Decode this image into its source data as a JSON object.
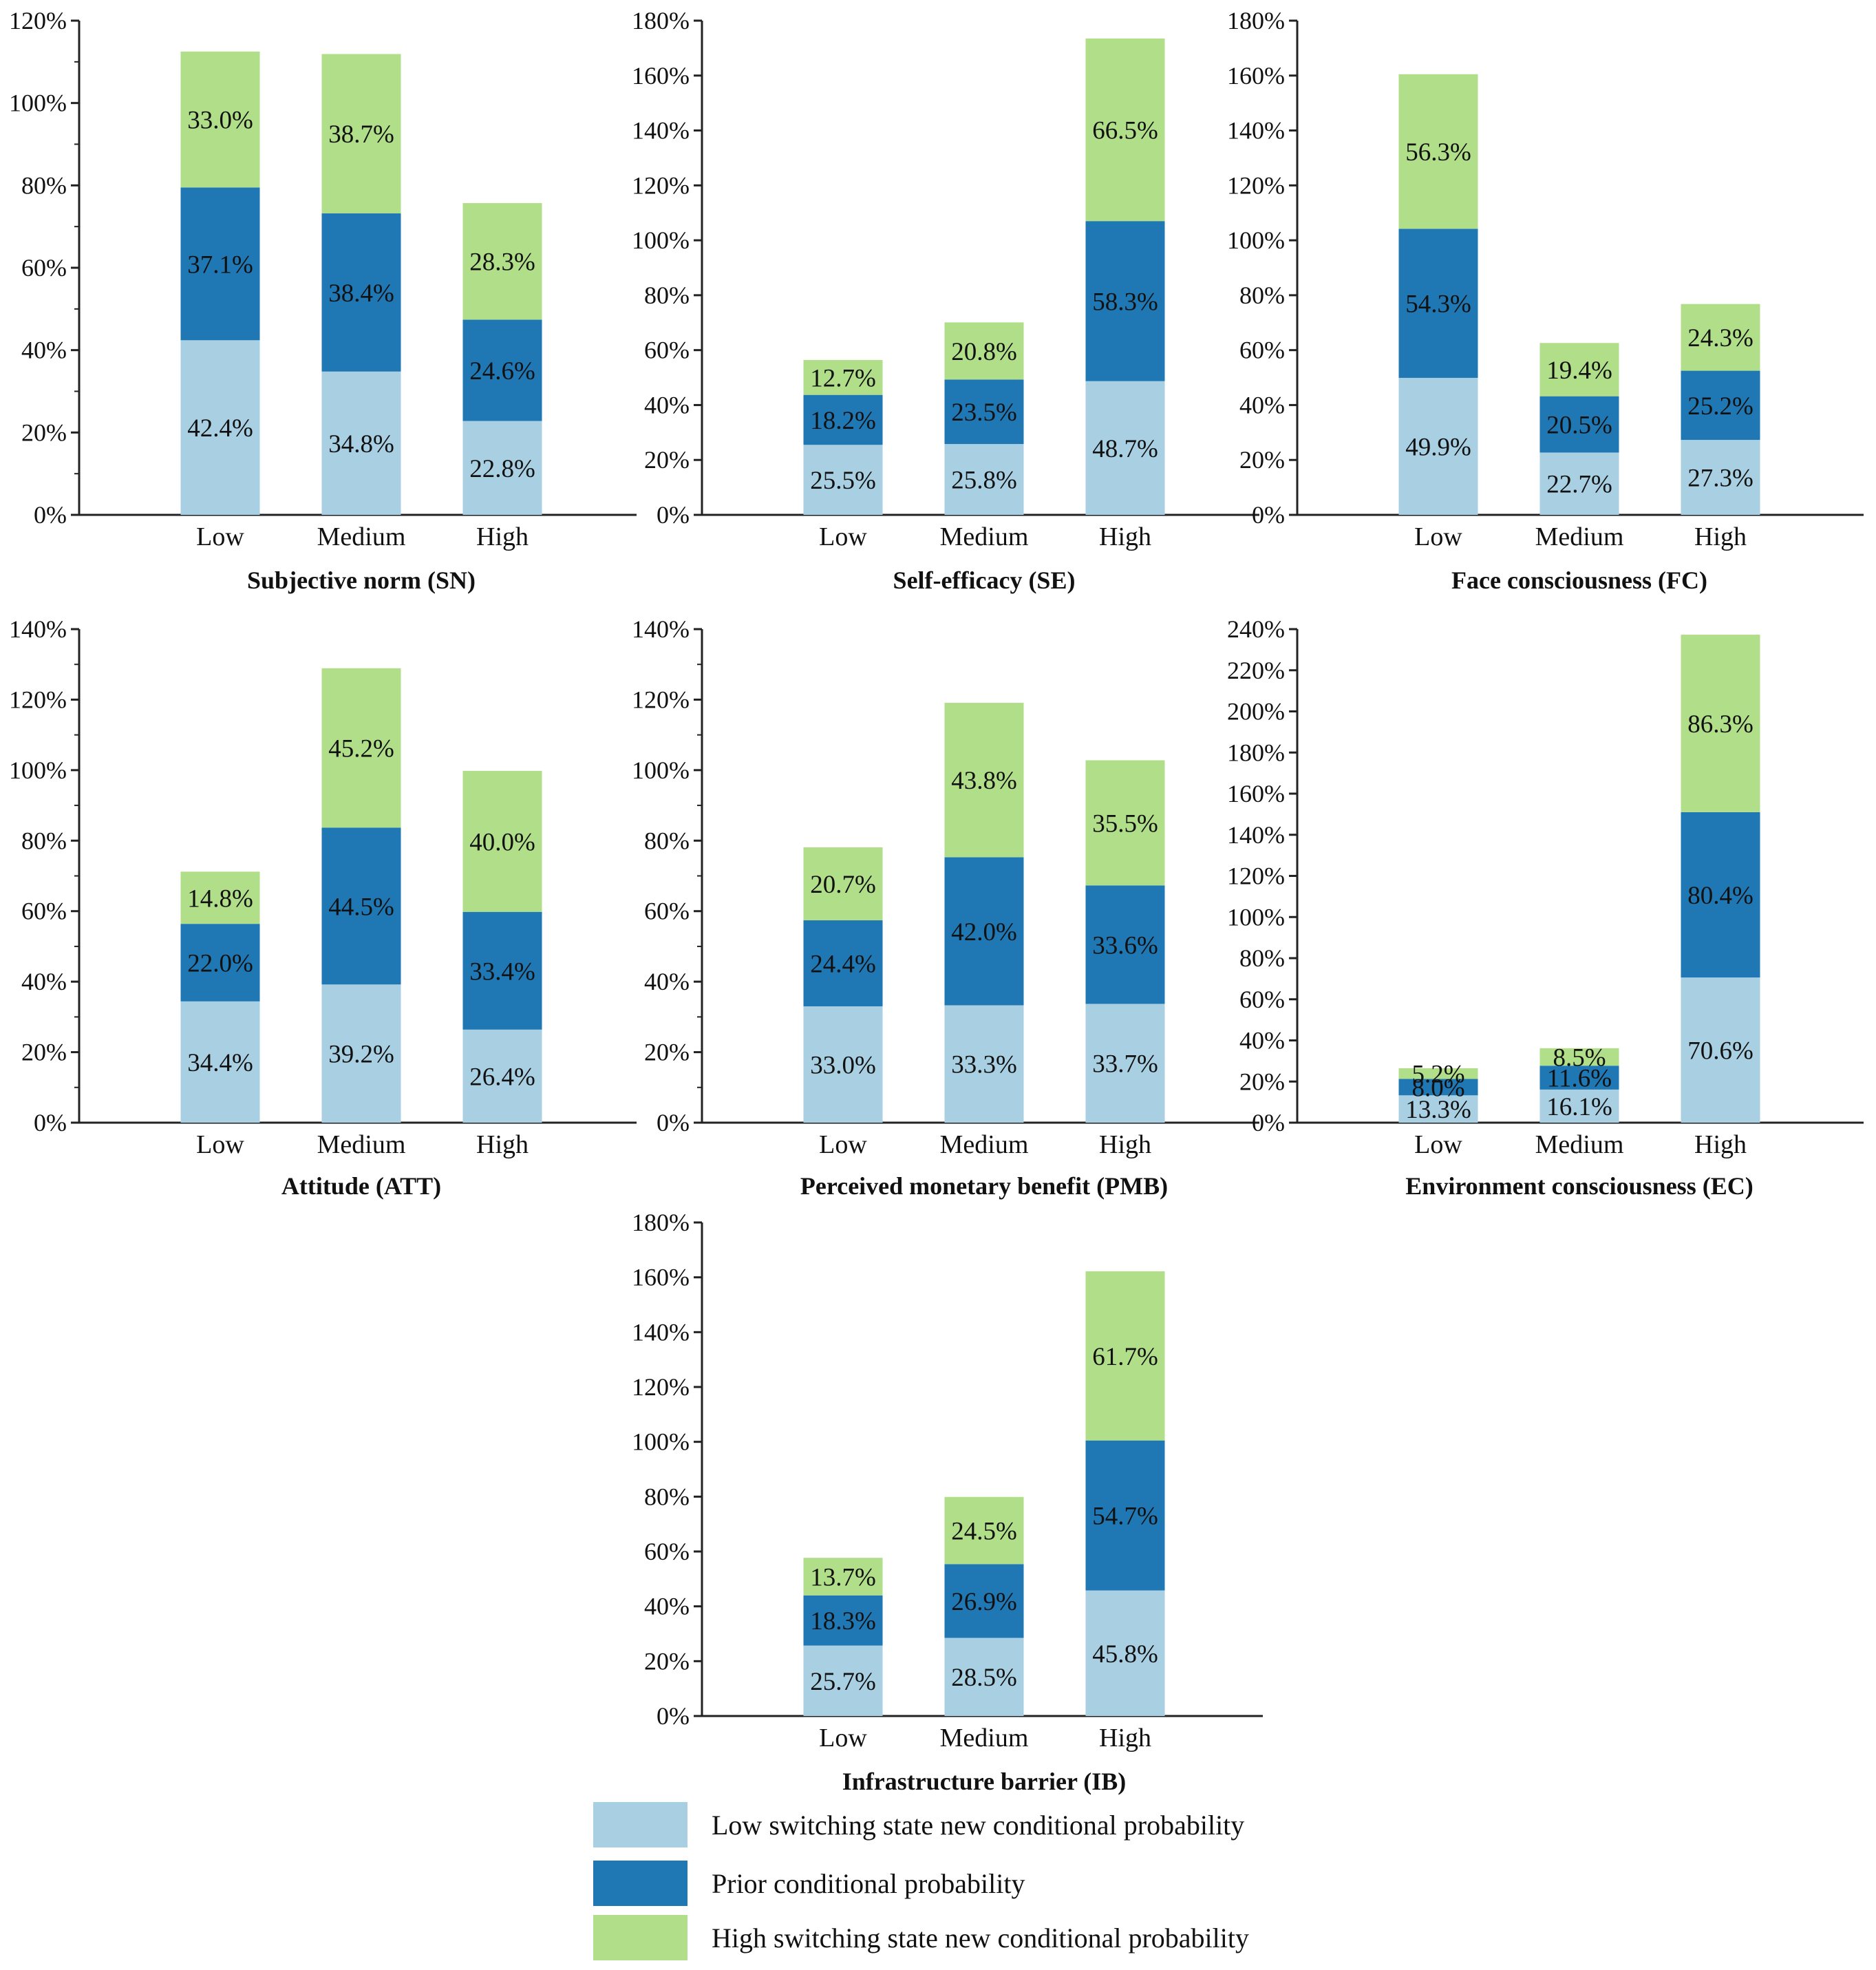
{
  "legend": [
    {
      "key": "low",
      "label": "Low switching state new conditional probability",
      "color": "#a8cfe2"
    },
    {
      "key": "prior",
      "label": "Prior conditional probability",
      "color": "#1f77b4"
    },
    {
      "key": "high",
      "label": "High switching state new conditional probability",
      "color": "#b1de88"
    }
  ],
  "chart_data": [
    {
      "type": "bar",
      "stacked": true,
      "title": "Subjective norm (SN)",
      "categories": [
        "Low",
        "Medium",
        "High"
      ],
      "ylim": [
        0,
        120
      ],
      "ytick_step": 20,
      "yminor": true,
      "series": [
        {
          "name": "Low switching state new conditional probability",
          "values": [
            42.4,
            34.8,
            22.8
          ],
          "labels": [
            "42.4%",
            "34.8%",
            "22.8%"
          ]
        },
        {
          "name": "Prior conditional probability",
          "values": [
            37.1,
            38.4,
            24.6
          ],
          "labels": [
            "37.1%",
            "38.4%",
            "24.6%"
          ]
        },
        {
          "name": "High switching state new conditional probability",
          "values": [
            33.0,
            38.7,
            28.3
          ],
          "labels": [
            "33.0%",
            "38.7%",
            "28.3%"
          ]
        }
      ]
    },
    {
      "type": "bar",
      "stacked": true,
      "title": "Self-efficacy (SE)",
      "categories": [
        "Low",
        "Medium",
        "High"
      ],
      "ylim": [
        0,
        180
      ],
      "ytick_step": 20,
      "yminor": false,
      "series": [
        {
          "name": "Low switching state new conditional probability",
          "values": [
            25.5,
            25.8,
            48.7
          ],
          "labels": [
            "25.5%",
            "25.8%",
            "48.7%"
          ]
        },
        {
          "name": "Prior conditional probability",
          "values": [
            18.2,
            23.5,
            58.3
          ],
          "labels": [
            "18.2%",
            "23.5%",
            "58.3%"
          ]
        },
        {
          "name": "High switching state new conditional probability",
          "values": [
            12.7,
            20.8,
            66.5
          ],
          "labels": [
            "12.7%",
            "20.8%",
            "66.5%"
          ]
        }
      ]
    },
    {
      "type": "bar",
      "stacked": true,
      "title": "Face consciousness (FC)",
      "categories": [
        "Low",
        "Medium",
        "High"
      ],
      "ylim": [
        0,
        180
      ],
      "ytick_step": 20,
      "yminor": false,
      "series": [
        {
          "name": "Low switching state new conditional probability",
          "values": [
            49.9,
            22.7,
            27.3
          ],
          "labels": [
            "49.9%",
            "22.7%",
            "27.3%"
          ]
        },
        {
          "name": "Prior conditional probability",
          "values": [
            54.3,
            20.5,
            25.2
          ],
          "labels": [
            "54.3%",
            "20.5%",
            "25.2%"
          ]
        },
        {
          "name": "High switching state new conditional probability",
          "values": [
            56.3,
            19.4,
            24.3
          ],
          "labels": [
            "56.3%",
            "19.4%",
            "24.3%"
          ]
        }
      ]
    },
    {
      "type": "bar",
      "stacked": true,
      "title": "Attitude (ATT)",
      "categories": [
        "Low",
        "Medium",
        "High"
      ],
      "ylim": [
        0,
        140
      ],
      "ytick_step": 20,
      "yminor": true,
      "series": [
        {
          "name": "Low switching state new conditional probability",
          "values": [
            34.4,
            39.2,
            26.4
          ],
          "labels": [
            "34.4%",
            "39.2%",
            "26.4%"
          ]
        },
        {
          "name": "Prior conditional probability",
          "values": [
            22.0,
            44.5,
            33.4
          ],
          "labels": [
            "22.0%",
            "44.5%",
            "33.4%"
          ]
        },
        {
          "name": "High switching state new conditional probability",
          "values": [
            14.8,
            45.2,
            40.0
          ],
          "labels": [
            "14.8%",
            "45.2%",
            "40.0%"
          ]
        }
      ]
    },
    {
      "type": "bar",
      "stacked": true,
      "title": "Perceived monetary benefit (PMB)",
      "categories": [
        "Low",
        "Medium",
        "High"
      ],
      "ylim": [
        0,
        140
      ],
      "ytick_step": 20,
      "yminor": true,
      "series": [
        {
          "name": "Low switching state new conditional probability",
          "values": [
            33.0,
            33.3,
            33.7
          ],
          "labels": [
            "33.0%",
            "33.3%",
            "33.7%"
          ]
        },
        {
          "name": "Prior conditional probability",
          "values": [
            24.4,
            42.0,
            33.6
          ],
          "labels": [
            "24.4%",
            "42.0%",
            "33.6%"
          ]
        },
        {
          "name": "High switching state new conditional probability",
          "values": [
            20.7,
            43.8,
            35.5
          ],
          "labels": [
            "20.7%",
            "43.8%",
            "35.5%"
          ]
        }
      ]
    },
    {
      "type": "bar",
      "stacked": true,
      "title": "Environment consciousness (EC)",
      "categories": [
        "Low",
        "Medium",
        "High"
      ],
      "ylim": [
        0,
        240
      ],
      "ytick_step": 20,
      "yminor": false,
      "series": [
        {
          "name": "Low switching state new conditional probability",
          "values": [
            13.3,
            16.1,
            70.6
          ],
          "labels": [
            "13.3%",
            "16.1%",
            "70.6%"
          ]
        },
        {
          "name": "Prior conditional probability",
          "values": [
            8.0,
            11.6,
            80.4
          ],
          "labels": [
            "8.0%",
            "11.6%",
            "80.4%"
          ]
        },
        {
          "name": "High switching state new conditional probability",
          "values": [
            5.2,
            8.5,
            86.3
          ],
          "labels": [
            "5.2%",
            "8.5%",
            "86.3%"
          ]
        }
      ]
    },
    {
      "type": "bar",
      "stacked": true,
      "title": "Infrastructure barrier (IB)",
      "categories": [
        "Low",
        "Medium",
        "High"
      ],
      "ylim": [
        0,
        180
      ],
      "ytick_step": 20,
      "yminor": false,
      "series": [
        {
          "name": "Low switching state new conditional probability",
          "values": [
            25.7,
            28.5,
            45.8
          ],
          "labels": [
            "25.7%",
            "28.5%",
            "45.8%"
          ]
        },
        {
          "name": "Prior conditional probability",
          "values": [
            18.3,
            26.9,
            54.7
          ],
          "labels": [
            "18.3%",
            "26.9%",
            "54.7%"
          ]
        },
        {
          "name": "High switching state new conditional probability",
          "values": [
            13.7,
            24.5,
            61.7
          ],
          "labels": [
            "13.7%",
            "24.5%",
            "61.7%"
          ]
        }
      ]
    }
  ]
}
